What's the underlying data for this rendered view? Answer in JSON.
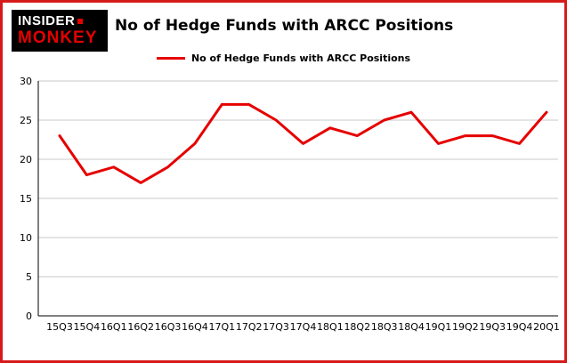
{
  "logo": {
    "line1": "INSIDER",
    "line2": "MONKEY"
  },
  "header": {
    "title": "No of Hedge Funds with ARCC Positions"
  },
  "legend": {
    "label": "No of Hedge Funds with ARCC Positions"
  },
  "colors": {
    "accent_red": "#e60000",
    "border_red": "#d61a1a",
    "gridline_gray": "#c9c9c9",
    "axis_black": "#000000"
  },
  "chart_data": {
    "type": "line",
    "title": "No of Hedge Funds with ARCC Positions",
    "categories": [
      "15Q3",
      "15Q4",
      "16Q1",
      "16Q2",
      "16Q3",
      "16Q4",
      "17Q1",
      "17Q2",
      "17Q3",
      "17Q4",
      "18Q1",
      "18Q2",
      "18Q3",
      "18Q4",
      "19Q1",
      "19Q2",
      "19Q3",
      "19Q4",
      "20Q1"
    ],
    "values": [
      23,
      18,
      19,
      17,
      19,
      22,
      27,
      27,
      25,
      22,
      24,
      23,
      25,
      26,
      22,
      23,
      23,
      22,
      26
    ],
    "xlabel": "",
    "ylabel": "",
    "ylim": [
      0,
      30
    ],
    "yticks": [
      0,
      5,
      10,
      15,
      20,
      25,
      30
    ],
    "grid": true,
    "legend_position": "top",
    "line_color": "#e60000",
    "line_width": 3
  }
}
